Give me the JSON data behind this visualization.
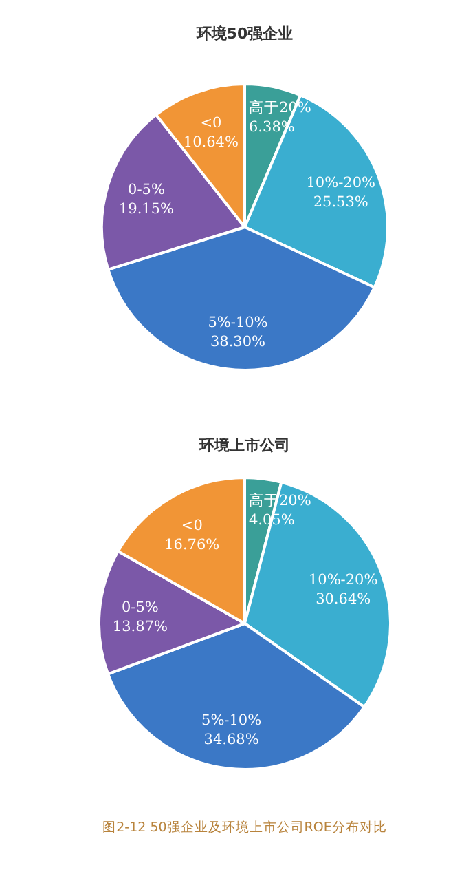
{
  "chart_data": [
    {
      "type": "pie",
      "title": "环境50强企业",
      "categories": [
        "高于20%",
        "10%-20%",
        "5%-10%",
        "0-5%",
        "<0"
      ],
      "values": [
        6.38,
        25.53,
        38.3,
        19.15,
        10.64
      ],
      "value_labels": [
        "6.38%",
        "25.53%",
        "38.30%",
        "19.15%",
        "10.64%"
      ],
      "colors": [
        "#3a9f98",
        "#3aaed0",
        "#3b78c6",
        "#7b58a8",
        "#f19536"
      ]
    },
    {
      "type": "pie",
      "title": "环境上市公司",
      "categories": [
        "高于20%",
        "10%-20%",
        "5%-10%",
        "0-5%",
        "<0"
      ],
      "values": [
        4.05,
        30.64,
        34.68,
        13.87,
        16.76
      ],
      "value_labels": [
        "4.05%",
        "30.64%",
        "34.68%",
        "13.87%",
        "16.76%"
      ],
      "colors": [
        "#3a9f98",
        "#3aaed0",
        "#3b78c6",
        "#7b58a8",
        "#f19536"
      ],
      "annotations": [
        "图2-12 50强企业及环境上市公司ROE分布对比"
      ]
    }
  ]
}
